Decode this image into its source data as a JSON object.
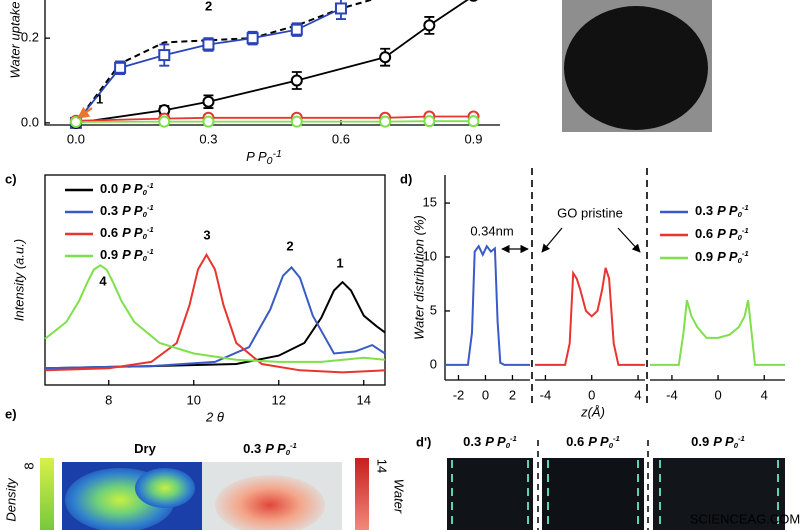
{
  "pressure_unit": {
    "base": "P P",
    "sub": "0",
    "sup": "-1"
  },
  "chart_data": [
    {
      "type": "scatter",
      "ylabel": "Water uptake",
      "xlim": [
        -0.07,
        0.96
      ],
      "ylim": [
        -0.005,
        0.29
      ],
      "xticks": [
        {
          "value": 0,
          "label": "0.0"
        },
        0.3,
        0.6,
        0.9
      ],
      "yticks": [
        {
          "value": 0,
          "label": "0.0"
        },
        0.2
      ],
      "annotations": [
        "1",
        "2"
      ],
      "annotation_color": "#e8762c",
      "series": [
        {
          "color": "#000000",
          "marker": "none",
          "line": "dashed",
          "x": [
            0,
            0.1,
            0.2,
            0.3,
            0.4,
            0.5,
            0.6,
            0.7
          ],
          "values": [
            0,
            0.14,
            0.19,
            0.195,
            0.2,
            0.23,
            0.27,
            0.3
          ]
        },
        {
          "color": "#2a44b8",
          "marker": "square",
          "line": "solid",
          "x": [
            0,
            0.1,
            0.2,
            0.3,
            0.4,
            0.5,
            0.6
          ],
          "values": [
            0,
            0.13,
            0.16,
            0.185,
            0.2,
            0.22,
            0.27
          ],
          "errors": [
            0,
            0.015,
            0.025,
            0.015,
            0.015,
            0.015,
            0.025
          ]
        },
        {
          "color": "#000000",
          "marker": "circle",
          "line": "solid",
          "x": [
            0,
            0.2,
            0.3,
            0.5,
            0.7,
            0.8,
            0.9
          ],
          "values": [
            0,
            0.03,
            0.05,
            0.1,
            0.155,
            0.23,
            0.3
          ],
          "errors": [
            0,
            0.01,
            0.015,
            0.02,
            0.02,
            0.02,
            0
          ]
        },
        {
          "color": "#e8352f",
          "marker": "circle",
          "line": "solid",
          "x": [
            0,
            0.2,
            0.3,
            0.5,
            0.7,
            0.8,
            0.9
          ],
          "values": [
            0.005,
            0.01,
            0.012,
            0.012,
            0.012,
            0.015,
            0.015
          ]
        },
        {
          "color": "#7ee04a",
          "marker": "circle",
          "line": "solid",
          "x": [
            0,
            0.2,
            0.3,
            0.5,
            0.7,
            0.8,
            0.9
          ],
          "values": [
            0.002,
            0.003,
            0.003,
            0.003,
            0.003,
            0.004,
            0.004
          ]
        }
      ]
    },
    {
      "type": "line",
      "label": "c)",
      "xlabel": "2 θ",
      "ylabel": "Intensity (a.u.)",
      "xlim": [
        6.5,
        14.5
      ],
      "ylim": [
        0,
        1
      ],
      "xticks": [
        8,
        10,
        12,
        14
      ],
      "annotations": [
        "1",
        "2",
        "3",
        "4"
      ],
      "annotation_color": "#e8762c",
      "series": [
        {
          "name": "0.0",
          "color": "#000000",
          "x": [
            6.5,
            9,
            11,
            12,
            12.6,
            13,
            13.3,
            13.5,
            13.7,
            14,
            14.3,
            14.5
          ],
          "values": [
            0.08,
            0.09,
            0.1,
            0.14,
            0.2,
            0.32,
            0.45,
            0.49,
            0.45,
            0.33,
            0.28,
            0.25
          ]
        },
        {
          "name": "0.3",
          "color": "#3a5bc7",
          "x": [
            6.5,
            9,
            10.5,
            11.3,
            11.8,
            12.1,
            12.3,
            12.5,
            12.8,
            13.3,
            13.8,
            14.2,
            14.5
          ],
          "values": [
            0.08,
            0.09,
            0.11,
            0.18,
            0.36,
            0.52,
            0.56,
            0.51,
            0.33,
            0.15,
            0.16,
            0.19,
            0.15
          ]
        },
        {
          "name": "0.6",
          "color": "#e8352f",
          "x": [
            6.5,
            8,
            9,
            9.6,
            9.9,
            10.1,
            10.3,
            10.5,
            10.7,
            11,
            11.6,
            12.5,
            13.5,
            14.5
          ],
          "values": [
            0.07,
            0.08,
            0.11,
            0.2,
            0.38,
            0.55,
            0.62,
            0.55,
            0.38,
            0.2,
            0.1,
            0.07,
            0.06,
            0.07
          ]
        },
        {
          "name": "0.9",
          "color": "#7ee04a",
          "x": [
            6.5,
            7,
            7.3,
            7.5,
            7.65,
            7.8,
            7.95,
            8.1,
            8.3,
            8.6,
            9.2,
            10,
            11,
            12,
            13,
            14,
            14.5
          ],
          "values": [
            0.22,
            0.3,
            0.4,
            0.49,
            0.55,
            0.57,
            0.55,
            0.49,
            0.4,
            0.3,
            0.2,
            0.15,
            0.12,
            0.11,
            0.11,
            0.13,
            0.12
          ]
        }
      ]
    },
    {
      "type": "line",
      "label": "d)",
      "xlabel": "z(Å)",
      "ylabel": "Water distribution (%)",
      "ylim": [
        -1.4,
        17.6
      ],
      "yticks": [
        0,
        5,
        10,
        15
      ],
      "zero_tick_color": "#e8352f",
      "annotations": [
        "0.34nm",
        "GO pristine"
      ],
      "series": [
        {
          "name": "0.3",
          "color": "#3a5bc7",
          "xlim": [
            -3,
            3.3
          ],
          "xticks": [
            -2,
            0,
            2
          ],
          "x": [
            -3,
            -1.3,
            -1.0,
            -0.8,
            -0.5,
            -0.2,
            0.1,
            0.4,
            0.7,
            0.9,
            1.1,
            1.4,
            3.3
          ],
          "values": [
            0,
            0,
            3,
            10.5,
            11,
            10.2,
            11,
            10.5,
            10.8,
            4,
            0.2,
            0,
            0
          ]
        },
        {
          "name": "0.6",
          "color": "#e8352f",
          "xlim": [
            -4.9,
            4.6
          ],
          "xticks": [
            -4,
            0,
            4
          ],
          "x": [
            -4.9,
            -2.3,
            -1.9,
            -1.6,
            -1.3,
            -1,
            -0.5,
            0,
            0.5,
            0.9,
            1.2,
            1.5,
            1.9,
            2.3,
            4.6
          ],
          "values": [
            0,
            0,
            2,
            8.5,
            8,
            7,
            5,
            4.5,
            5,
            7,
            9,
            8,
            2,
            0,
            0
          ]
        },
        {
          "name": "0.9",
          "color": "#7ee04a",
          "xlim": [
            -5.9,
            5.8
          ],
          "xticks": [
            -4,
            0,
            4
          ],
          "x": [
            -5.9,
            -3.4,
            -3,
            -2.7,
            -2.3,
            -1.8,
            -1,
            0,
            1,
            1.8,
            2.3,
            2.6,
            2.8,
            3.2,
            5.8
          ],
          "values": [
            0,
            0,
            3,
            6,
            4.5,
            3.5,
            2.5,
            2.5,
            2.8,
            3.5,
            4.5,
            6,
            4,
            0,
            0
          ]
        }
      ]
    }
  ],
  "panel_e": {
    "label": "e)",
    "titles": [
      "Dry",
      "0.3"
    ],
    "density_label": "Density",
    "density_tick": 8,
    "water_label": "Water",
    "water_tick": 14
  },
  "panel_d_prime": {
    "label": "d')",
    "titles": [
      "0.3",
      "0.6",
      "0.9"
    ]
  },
  "watermark": "SCIENCEAG.COM"
}
